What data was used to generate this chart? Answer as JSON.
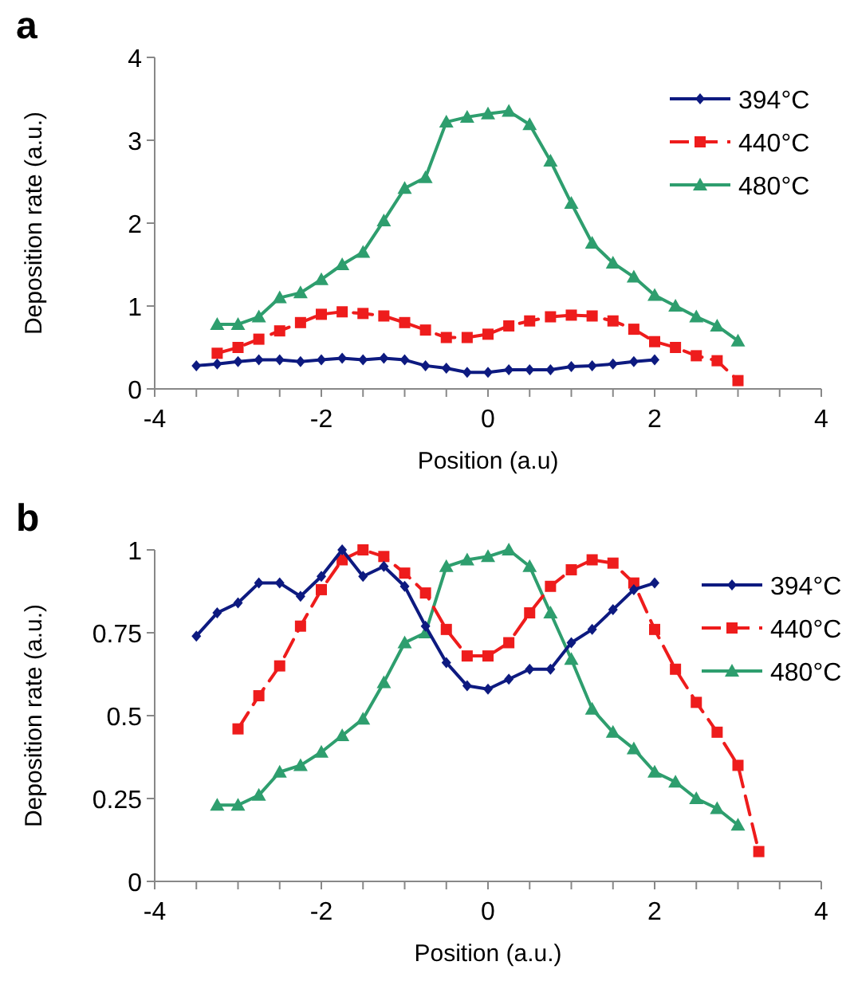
{
  "chart_data": [
    {
      "type": "line",
      "title": "a",
      "xlabel": "Position (a.u)",
      "ylabel": "Deposition rate (a.u.)",
      "xlim": [
        -4,
        4
      ],
      "ylim": [
        0,
        4
      ],
      "xticks": [
        -4,
        {
          "value": -3.5,
          "label": null
        },
        {
          "value": -3,
          "label": null
        },
        {
          "value": -2.5,
          "label": null
        },
        -2,
        {
          "value": -1.5,
          "label": null
        },
        {
          "value": -1,
          "label": null
        },
        {
          "value": -0.5,
          "label": null
        },
        0,
        {
          "value": 0.5,
          "label": null
        },
        {
          "value": 1,
          "label": null
        },
        {
          "value": 1.5,
          "label": null
        },
        2,
        {
          "value": 2.5,
          "label": null
        },
        {
          "value": 3,
          "label": null
        },
        {
          "value": 3.5,
          "label": null
        },
        4
      ],
      "yticks": [
        0,
        1,
        2,
        3,
        4
      ],
      "legend": "top right",
      "grid": false,
      "series": [
        {
          "name": "394°C",
          "color": "#0d1a80",
          "marker": "diamond",
          "line_style": "solid",
          "x": [
            -3.5,
            -3.25,
            -3,
            -2.75,
            -2.5,
            -2.25,
            -2,
            -1.75,
            -1.5,
            -1.25,
            -1,
            -0.75,
            -0.5,
            -0.25,
            0,
            0.25,
            0.5,
            0.75,
            1,
            1.25,
            1.5,
            1.75,
            2
          ],
          "values": [
            0.28,
            0.3,
            0.33,
            0.35,
            0.35,
            0.33,
            0.35,
            0.37,
            0.35,
            0.37,
            0.35,
            0.28,
            0.25,
            0.2,
            0.2,
            0.23,
            0.23,
            0.23,
            0.27,
            0.28,
            0.3,
            0.33,
            0.35
          ]
        },
        {
          "name": "440°C",
          "color": "#ee1c1c",
          "marker": "square",
          "line_style": "dashed",
          "x": [
            -3.25,
            -3,
            -2.75,
            -2.5,
            -2.25,
            -2,
            -1.75,
            -1.5,
            -1.25,
            -1,
            -0.75,
            -0.5,
            -0.25,
            0,
            0.25,
            0.5,
            0.75,
            1,
            1.25,
            1.5,
            1.75,
            2,
            2.25,
            2.5,
            2.75,
            3
          ],
          "values": [
            0.43,
            0.5,
            0.6,
            0.7,
            0.8,
            0.9,
            0.93,
            0.91,
            0.88,
            0.8,
            0.71,
            0.62,
            0.62,
            0.66,
            0.76,
            0.82,
            0.87,
            0.89,
            0.88,
            0.82,
            0.72,
            0.57,
            0.5,
            0.4,
            0.34,
            0.1
          ]
        },
        {
          "name": "480°C",
          "color": "#2e9e6e",
          "marker": "triangle",
          "line_style": "solid",
          "x": [
            -3.25,
            -3,
            -2.75,
            -2.5,
            -2.25,
            -2,
            -1.75,
            -1.5,
            -1.25,
            -1,
            -0.75,
            -0.5,
            -0.25,
            0,
            0.25,
            0.5,
            0.75,
            1,
            1.25,
            1.5,
            1.75,
            2,
            2.25,
            2.5,
            2.75,
            3
          ],
          "values": [
            0.78,
            0.78,
            0.87,
            1.1,
            1.16,
            1.32,
            1.5,
            1.65,
            2.03,
            2.42,
            2.55,
            3.22,
            3.28,
            3.32,
            3.35,
            3.19,
            2.75,
            2.24,
            1.76,
            1.52,
            1.35,
            1.13,
            1.0,
            0.87,
            0.76,
            0.58
          ]
        }
      ]
    },
    {
      "type": "line",
      "title": "b",
      "xlabel": "Position (a.u.)",
      "ylabel": "Deposition rate (a.u.)",
      "xlim": [
        -4,
        4
      ],
      "ylim": [
        0,
        1
      ],
      "xticks": [
        -4,
        {
          "value": -3.5,
          "label": null
        },
        {
          "value": -3,
          "label": null
        },
        {
          "value": -2.5,
          "label": null
        },
        -2,
        {
          "value": -1.5,
          "label": null
        },
        {
          "value": -1,
          "label": null
        },
        {
          "value": -0.5,
          "label": null
        },
        0,
        {
          "value": 0.5,
          "label": null
        },
        {
          "value": 1,
          "label": null
        },
        {
          "value": 1.5,
          "label": null
        },
        2,
        {
          "value": 2.5,
          "label": null
        },
        {
          "value": 3,
          "label": null
        },
        {
          "value": 3.5,
          "label": null
        },
        4
      ],
      "yticks": [
        0,
        0.25,
        0.5,
        0.75,
        1
      ],
      "legend": "right",
      "grid": false,
      "series": [
        {
          "name": "394°C",
          "color": "#0d1a80",
          "marker": "diamond",
          "line_style": "solid",
          "x": [
            -3.5,
            -3.25,
            -3,
            -2.75,
            -2.5,
            -2.25,
            -2,
            -1.75,
            -1.5,
            -1.25,
            -1,
            -0.75,
            -0.5,
            -0.25,
            0,
            0.25,
            0.5,
            0.75,
            1,
            1.25,
            1.5,
            1.75,
            2
          ],
          "values": [
            0.74,
            0.81,
            0.84,
            0.9,
            0.9,
            0.86,
            0.92,
            1.0,
            0.92,
            0.95,
            0.89,
            0.77,
            0.66,
            0.59,
            0.58,
            0.61,
            0.64,
            0.64,
            0.72,
            0.76,
            0.82,
            0.88,
            0.9
          ]
        },
        {
          "name": "440°C",
          "color": "#ee1c1c",
          "marker": "square",
          "line_style": "dashed",
          "x": [
            -3,
            -2.75,
            -2.5,
            -2.25,
            -2,
            -1.75,
            -1.5,
            -1.25,
            -1,
            -0.75,
            -0.5,
            -0.25,
            0,
            0.25,
            0.5,
            0.75,
            1,
            1.25,
            1.5,
            1.75,
            2,
            2.25,
            2.5,
            2.75,
            3,
            3.25
          ],
          "values": [
            0.46,
            0.56,
            0.65,
            0.77,
            0.88,
            0.97,
            1.0,
            0.98,
            0.93,
            0.87,
            0.76,
            0.68,
            0.68,
            0.72,
            0.81,
            0.89,
            0.94,
            0.97,
            0.96,
            0.9,
            0.76,
            0.64,
            0.54,
            0.45,
            0.35,
            0.09
          ]
        },
        {
          "name": "480°C",
          "color": "#2e9e6e",
          "marker": "triangle",
          "line_style": "solid",
          "x": [
            -3.25,
            -3,
            -2.75,
            -2.5,
            -2.25,
            -2,
            -1.75,
            -1.5,
            -1.25,
            -1,
            -0.75,
            -0.5,
            -0.25,
            0,
            0.25,
            0.5,
            0.75,
            1,
            1.25,
            1.5,
            1.75,
            2,
            2.25,
            2.5,
            2.75,
            3
          ],
          "values": [
            0.23,
            0.23,
            0.26,
            0.33,
            0.35,
            0.39,
            0.44,
            0.49,
            0.6,
            0.72,
            0.75,
            0.95,
            0.97,
            0.98,
            1.0,
            0.95,
            0.81,
            0.67,
            0.52,
            0.45,
            0.4,
            0.33,
            0.3,
            0.25,
            0.22,
            0.17
          ]
        }
      ]
    }
  ]
}
